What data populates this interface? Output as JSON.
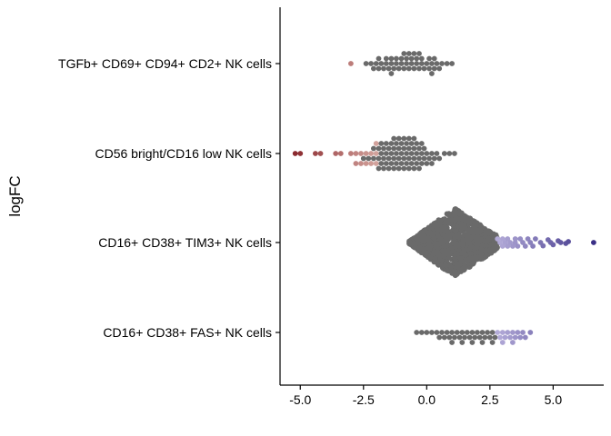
{
  "chart_data": {
    "type": "scatter",
    "title": "",
    "xlabel": "",
    "ylabel": "logFC",
    "xlim": [
      -5.8,
      7.0
    ],
    "x_ticks": [
      -5.0,
      -2.5,
      0.0,
      2.5,
      5.0
    ],
    "x_tick_labels": [
      "-5.0",
      "-2.5",
      "0.0",
      "2.5",
      "5.0"
    ],
    "grid": false,
    "legend": "none",
    "colors": {
      "nonsignificant": "#6a6a6a",
      "down_strong": "#8b2a2f",
      "down_mild": "#d2a29c",
      "up_mild": "#b3abd8",
      "up_strong": "#3a2f86"
    },
    "categories": [
      "CD16+ CD38+ FAS+ NK cells",
      "CD16+ CD38+ TIM3+ NK cells",
      "CD56 bright/CD16 low NK cells",
      "TGFb+ CD69+ CD94+ CD2+ NK cells"
    ],
    "series": [
      {
        "category": "TGFb+ CD69+ CD94+ CD2+ NK cells",
        "significant_values": [
          -3.0
        ],
        "values": [
          -3.0,
          -2.4,
          -2.2,
          -2.1,
          -2.0,
          -1.9,
          -1.9,
          -1.8,
          -1.7,
          -1.6,
          -1.5,
          -1.4,
          -1.4,
          -1.3,
          -1.2,
          -1.1,
          -1.0,
          -1.0,
          -0.9,
          -0.8,
          -0.8,
          -0.7,
          -0.6,
          -0.5,
          -0.5,
          -0.4,
          -0.3,
          -0.2,
          -0.2,
          -0.1,
          0.0,
          0.1,
          0.2,
          0.2,
          0.3,
          0.4,
          0.5,
          0.6,
          0.8,
          1.0,
          -1.6,
          -1.2,
          -0.6,
          -0.3,
          0.1,
          -0.9,
          -1.4,
          -0.4,
          0.3,
          -0.7
        ]
      },
      {
        "category": "CD56 bright/CD16 low NK cells",
        "significant_values": [
          -5.2,
          -5.0,
          -4.4,
          -4.2,
          -3.6,
          -3.4,
          -3.0,
          -2.8,
          -2.6,
          -2.6,
          -2.4,
          -2.2,
          -2.0
        ],
        "values": [
          -5.2,
          -5.0,
          -4.4,
          -4.2,
          -3.6,
          -3.4,
          -3.0,
          -2.8,
          -2.6,
          -2.6,
          -2.4,
          -2.2,
          -2.0,
          -2.8,
          -2.5,
          -2.4,
          -2.3,
          -2.2,
          -2.1,
          -2.1,
          -2.0,
          -1.9,
          -1.9,
          -1.8,
          -1.8,
          -1.7,
          -1.7,
          -1.6,
          -1.6,
          -1.5,
          -1.5,
          -1.4,
          -1.4,
          -1.3,
          -1.3,
          -1.2,
          -1.2,
          -1.1,
          -1.1,
          -1.0,
          -1.0,
          -0.9,
          -0.9,
          -0.8,
          -0.8,
          -0.7,
          -0.7,
          -0.6,
          -0.6,
          -0.5,
          -0.5,
          -0.4,
          -0.4,
          -0.3,
          -0.3,
          -0.2,
          -0.2,
          -0.1,
          0.0,
          0.1,
          0.2,
          0.3,
          0.4,
          0.5,
          0.7,
          0.9,
          1.1,
          -1.5,
          -1.3,
          -1.1,
          -0.9,
          -0.7,
          -0.5,
          -0.3,
          -0.1,
          -2.0,
          -1.8,
          -1.6,
          -1.4,
          -1.2,
          -1.0,
          -0.8,
          -0.6,
          -0.4,
          -0.2,
          0.0,
          0.2,
          -1.9,
          -1.7,
          -1.3,
          -1.1,
          -0.9,
          -0.7,
          -0.5
        ]
      },
      {
        "category": "CD16+ CD38+ TIM3+ NK cells",
        "significant_threshold": 2.8,
        "min": -0.7,
        "max": 6.6,
        "center": 1.1,
        "n_points": 1500,
        "tail_values": [
          2.8,
          2.9,
          3.0,
          3.0,
          3.1,
          3.2,
          3.2,
          3.3,
          3.4,
          3.5,
          3.5,
          3.6,
          3.7,
          3.8,
          3.9,
          4.0,
          4.1,
          4.2,
          4.3,
          4.5,
          4.6,
          4.8,
          4.9,
          5.0,
          5.2,
          5.3,
          5.5,
          5.6,
          6.6
        ]
      },
      {
        "category": "CD16+ CD38+ FAS+ NK cells",
        "significant_values": [
          2.8,
          2.9,
          3.0,
          3.1,
          3.2,
          3.3,
          3.4,
          3.5,
          3.6,
          3.7,
          3.8,
          3.9,
          4.1
        ],
        "values": [
          -0.4,
          -0.2,
          0.0,
          0.2,
          0.4,
          0.5,
          0.6,
          0.7,
          0.8,
          0.9,
          1.0,
          1.1,
          1.2,
          1.3,
          1.4,
          1.5,
          1.6,
          1.7,
          1.8,
          1.9,
          2.0,
          2.1,
          2.2,
          2.3,
          2.4,
          2.5,
          2.6,
          2.7,
          2.8,
          2.9,
          3.0,
          3.1,
          3.2,
          3.3,
          3.4,
          3.5,
          3.6,
          3.7,
          3.8,
          3.9,
          4.1,
          1.0,
          1.4,
          1.8,
          2.2,
          2.6,
          3.0,
          3.4
        ]
      }
    ]
  }
}
